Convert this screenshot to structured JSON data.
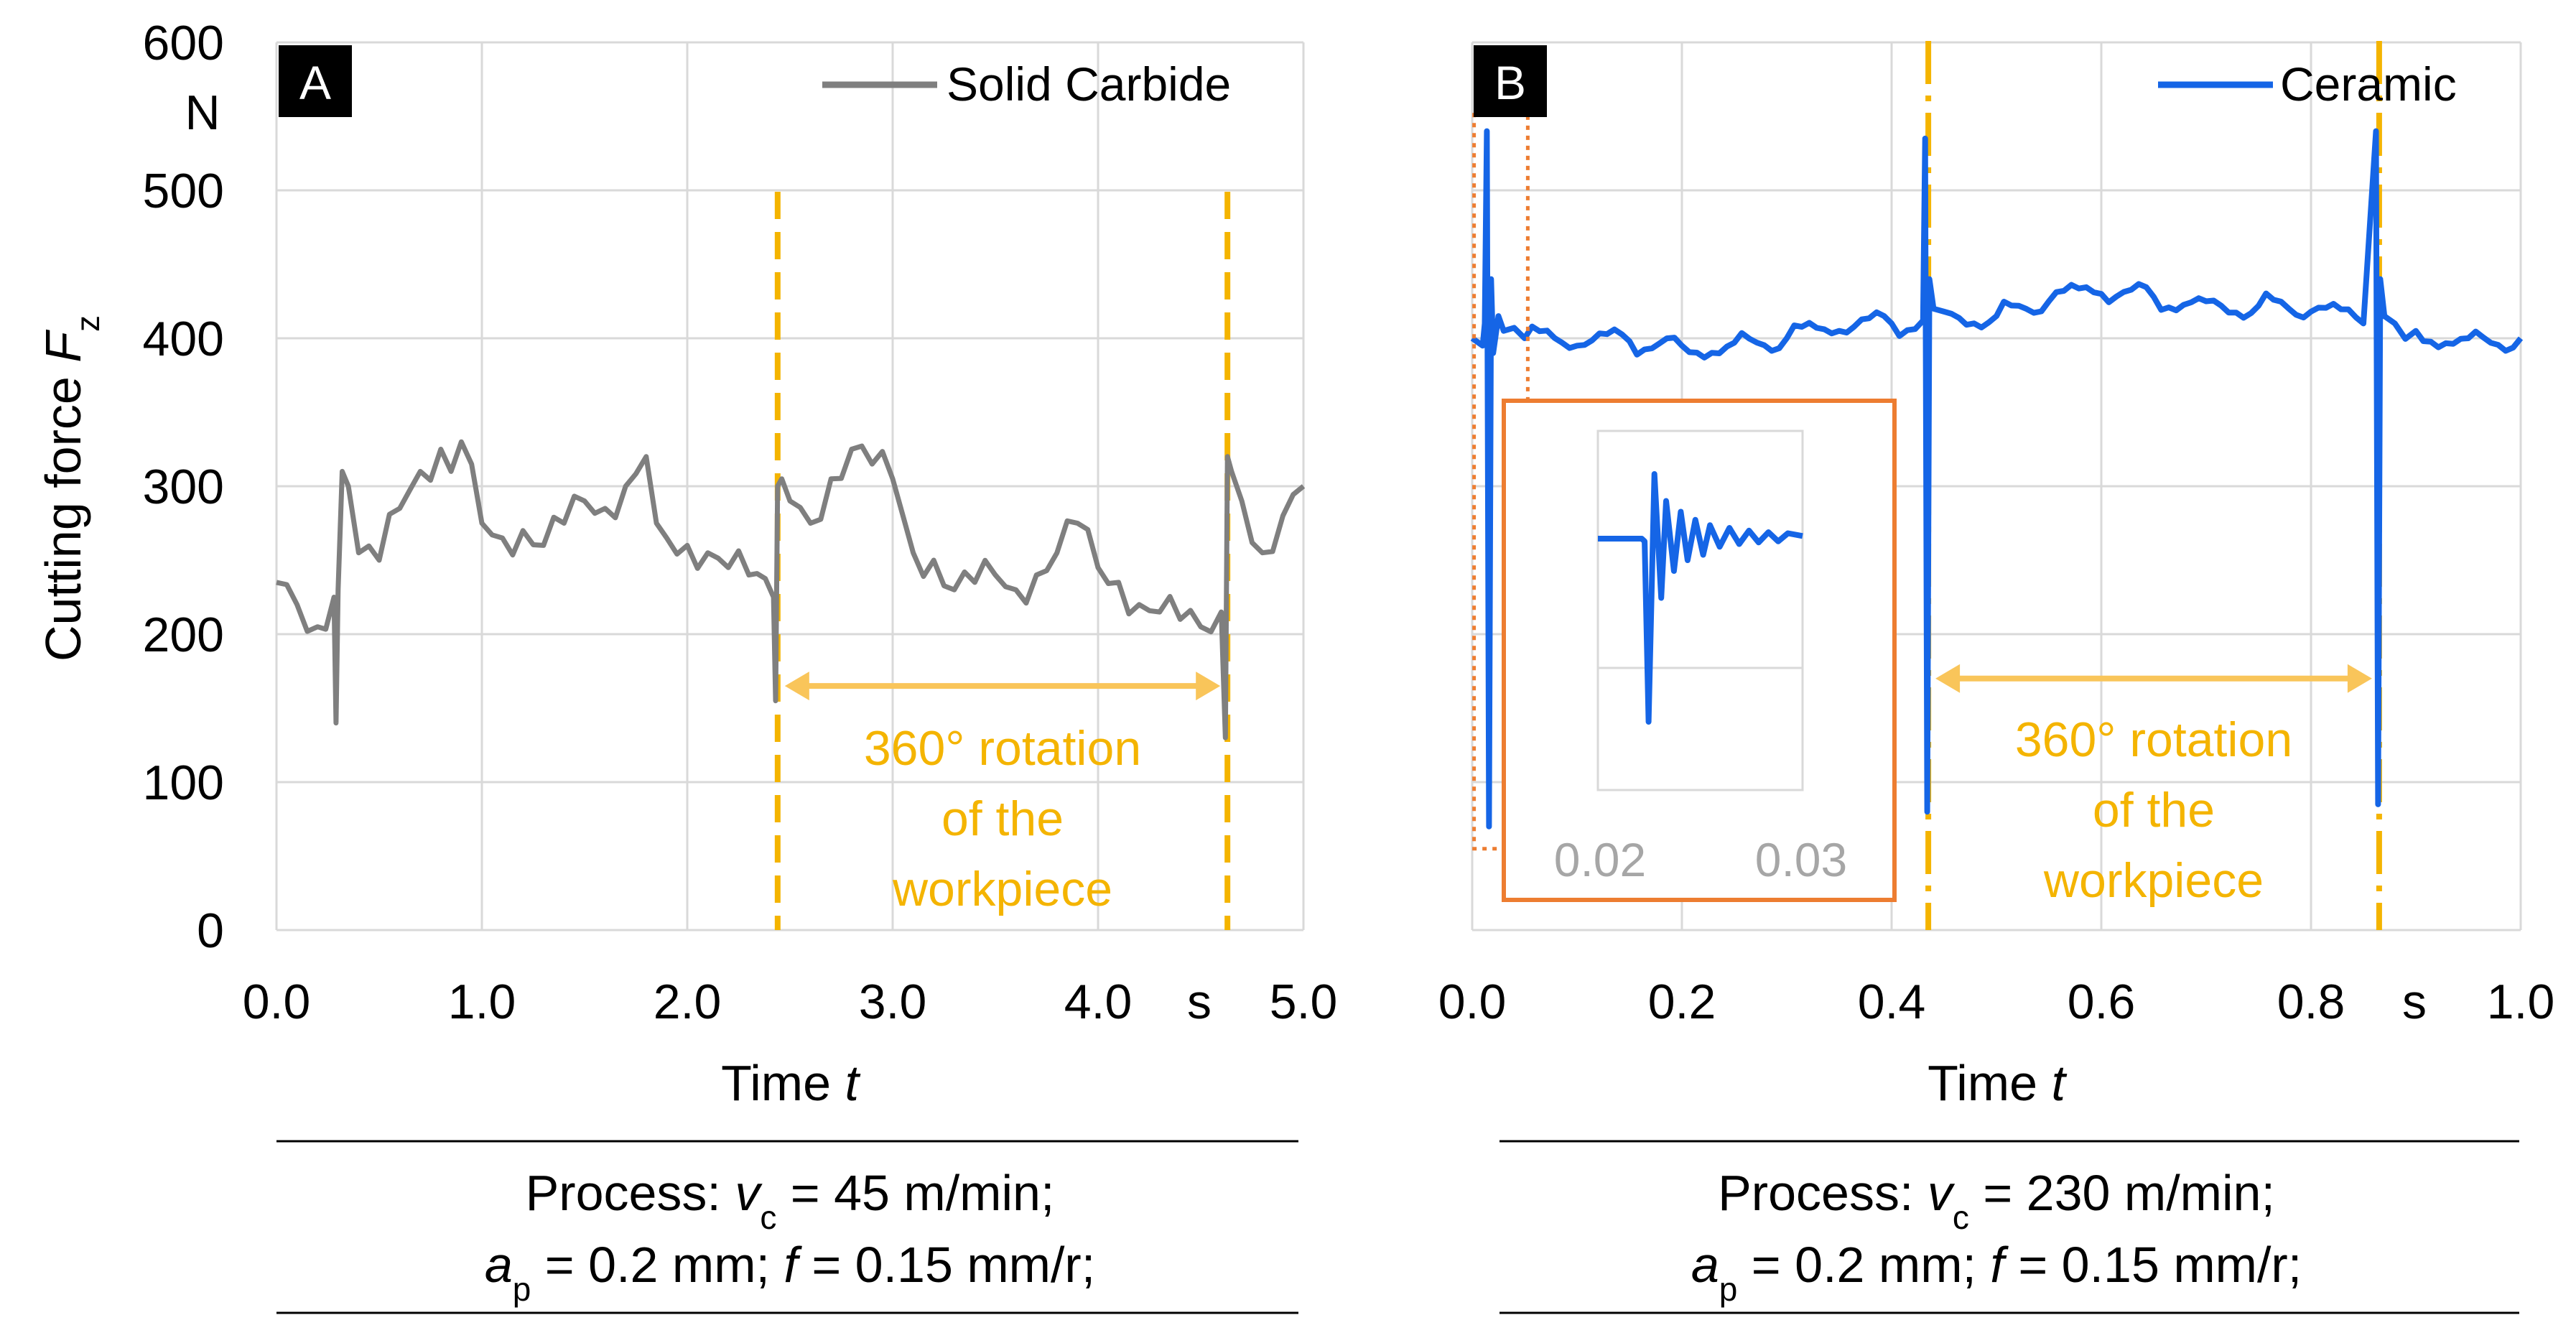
{
  "colors": {
    "grid": "#d9d9d9",
    "axis_text": "#000000",
    "carbide": "#7f7f7f",
    "ceramic": "#1565e6",
    "marker": "#f4b400",
    "inset_frame": "#ed7d31",
    "inset_tick": "#a6a6a6",
    "tag_bg": "#000000",
    "tag_fg": "#ffffff"
  },
  "y_axis": {
    "label": "Cutting force",
    "symbol": "F",
    "subscript": "z",
    "unit": "N",
    "ticks": [
      "0",
      "100",
      "200",
      "300",
      "400",
      "500",
      "600"
    ]
  },
  "chart_data": [
    {
      "panel": "A",
      "type": "line",
      "xlabel": "Time",
      "xsymbol": "t",
      "xunit": "s",
      "xlim": [
        0,
        5
      ],
      "ylim": [
        0,
        600
      ],
      "x_ticks": [
        "0.0",
        "1.0",
        "2.0",
        "3.0",
        "4.0",
        "5.0"
      ],
      "grid": true,
      "legend_position": "top-right",
      "series": [
        {
          "name": "Solid Carbide",
          "x": [
            0,
            0.1,
            0.2,
            0.28,
            0.29,
            0.3,
            0.32,
            0.35,
            0.4,
            0.5,
            0.6,
            0.7,
            0.8,
            0.85,
            0.9,
            1.0,
            1.1,
            1.2,
            1.3,
            1.4,
            1.5,
            1.6,
            1.7,
            1.8,
            1.85,
            1.9,
            2.0,
            2.1,
            2.2,
            2.3,
            2.42,
            2.43,
            2.44,
            2.46,
            2.5,
            2.6,
            2.7,
            2.8,
            2.9,
            3.0,
            3.1,
            3.2,
            3.3,
            3.4,
            3.5,
            3.6,
            3.7,
            3.8,
            3.9,
            4.0,
            4.1,
            4.2,
            4.3,
            4.4,
            4.5,
            4.6,
            4.62,
            4.63,
            4.65,
            4.7,
            4.8,
            4.9,
            5.0
          ],
          "values": [
            235,
            220,
            205,
            225,
            140,
            230,
            310,
            300,
            255,
            250,
            285,
            310,
            325,
            310,
            330,
            275,
            265,
            270,
            260,
            275,
            290,
            285,
            300,
            320,
            275,
            265,
            260,
            255,
            245,
            240,
            225,
            155,
            300,
            305,
            290,
            275,
            305,
            325,
            315,
            305,
            255,
            250,
            230,
            235,
            240,
            230,
            240,
            255,
            275,
            245,
            235,
            220,
            215,
            210,
            205,
            215,
            130,
            320,
            310,
            290,
            255,
            280,
            300
          ]
        }
      ],
      "markers_x": [
        2.44,
        4.63
      ],
      "annotation": {
        "text_lines": [
          "360° rotation",
          "of the",
          "workpiece"
        ],
        "arrow_x": [
          2.44,
          4.63
        ],
        "arrow_y": 165
      },
      "process": {
        "prefix": "Process: ",
        "v_symbol": "v",
        "v_sub": "c",
        "v_value": " = 45 m/min;",
        "a_symbol": "a",
        "a_sub": "p",
        "a_value": " = 0.2 mm; ",
        "f_symbol": "f",
        "f_value": " = 0.15 mm/r;"
      }
    },
    {
      "panel": "B",
      "type": "line",
      "xlabel": "Time",
      "xsymbol": "t",
      "xunit": "s",
      "xlim": [
        0,
        1
      ],
      "ylim": [
        0,
        600
      ],
      "x_ticks": [
        "0.0",
        "0.2",
        "0.4",
        "0.6",
        "0.8",
        "1.0"
      ],
      "grid": true,
      "legend_position": "top-right",
      "series": [
        {
          "name": "Ceramic",
          "x": [
            0,
            0.01,
            0.012,
            0.014,
            0.016,
            0.018,
            0.02,
            0.025,
            0.03,
            0.05,
            0.1,
            0.15,
            0.2,
            0.25,
            0.3,
            0.35,
            0.4,
            0.43,
            0.432,
            0.434,
            0.436,
            0.44,
            0.45,
            0.5,
            0.55,
            0.6,
            0.65,
            0.7,
            0.75,
            0.8,
            0.85,
            0.862,
            0.864,
            0.866,
            0.87,
            0.88,
            0.9,
            0.95,
            1.0
          ],
          "values": [
            400,
            395,
            410,
            540,
            70,
            440,
            390,
            415,
            405,
            400,
            395,
            398,
            395,
            397,
            400,
            405,
            410,
            412,
            535,
            80,
            440,
            420,
            418,
            415,
            425,
            430,
            428,
            425,
            422,
            418,
            410,
            540,
            85,
            440,
            415,
            410,
            405,
            400,
            400
          ]
        }
      ],
      "markers_x": [
        0.435,
        0.865
      ],
      "annotation": {
        "text_lines": [
          "360° rotation",
          "of the",
          "workpiece"
        ],
        "arrow_x": [
          0.435,
          0.865
        ],
        "arrow_y": 170
      },
      "zoom_box": {
        "x_range": [
          0.01,
          0.053
        ],
        "y_range": [
          55,
          555
        ]
      },
      "inset": {
        "x_ticks": [
          "0.02",
          "0.03"
        ],
        "xlim": [
          0.015,
          0.036
        ],
        "ylim": [
          0,
          600
        ],
        "x": [
          0.015,
          0.0195,
          0.0198,
          0.0202,
          0.0208,
          0.0215,
          0.022,
          0.0228,
          0.0235,
          0.0242,
          0.025,
          0.0258,
          0.0265,
          0.0275,
          0.0285,
          0.0295,
          0.0305,
          0.0315,
          0.0325,
          0.0335,
          0.0345,
          0.036
        ],
        "values": [
          400,
          400,
          395,
          60,
          520,
          290,
          470,
          340,
          450,
          360,
          435,
          370,
          425,
          385,
          420,
          390,
          415,
          393,
          412,
          395,
          410,
          405
        ]
      },
      "process": {
        "prefix": "Process: ",
        "v_symbol": "v",
        "v_sub": "c",
        "v_value": " = 230 m/min;",
        "a_symbol": "a",
        "a_sub": "p",
        "a_value": " = 0.2 mm; ",
        "f_symbol": "f",
        "f_value": " = 0.15 mm/r;"
      }
    }
  ]
}
